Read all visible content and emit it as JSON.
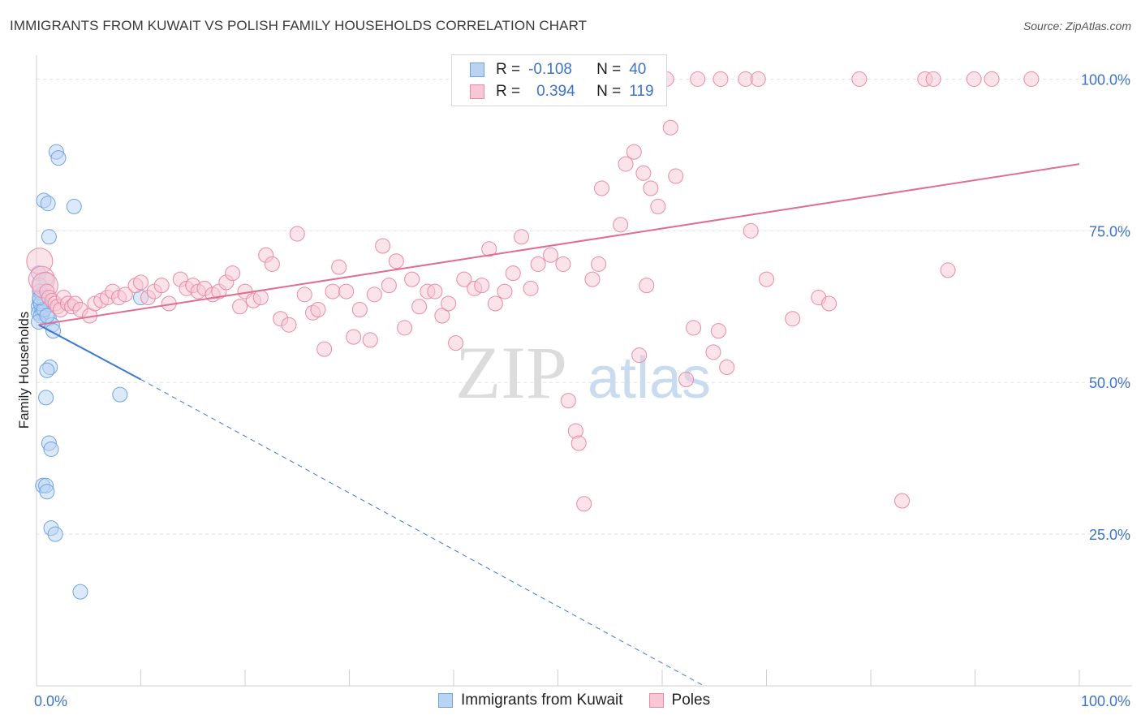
{
  "title": "IMMIGRANTS FROM KUWAIT VS POLISH FAMILY HOUSEHOLDS CORRELATION CHART",
  "source": "Source: ZipAtlas.com",
  "watermark": {
    "zip": "ZIP",
    "atlas": "atlas"
  },
  "legend": {
    "rows": [
      {
        "r_label": "R =",
        "r_value": "-0.108",
        "n_label": "N =",
        "n_value": "40"
      },
      {
        "r_label": "R =",
        "r_value": "0.394",
        "n_label": "N =",
        "n_value": "119"
      }
    ]
  },
  "bottom_legend": {
    "series1": "Immigrants from Kuwait",
    "series2": "Poles"
  },
  "colors": {
    "blue": "#6fa3e0",
    "blue_fill": "#b9d3f3",
    "blue_line": "#3b78d4",
    "pink": "#e88aa8",
    "pink_fill": "#f7c7d6",
    "pink_line": "#e06d93",
    "tick_text": "#3d74c7"
  },
  "chart_data": {
    "type": "scatter",
    "title": "IMMIGRANTS FROM KUWAIT VS POLISH FAMILY HOUSEHOLDS CORRELATION CHART",
    "xlabel": "",
    "ylabel": "Family Households",
    "xlim": [
      0,
      100
    ],
    "ylim": [
      0,
      103
    ],
    "x_tick_labels": [
      {
        "value": 0,
        "label": "0.0%"
      },
      {
        "value": 100,
        "label": "100.0%"
      }
    ],
    "y_tick_labels": [
      {
        "value": 25,
        "label": "25.0%"
      },
      {
        "value": 50,
        "label": "50.0%"
      },
      {
        "value": 75,
        "label": "75.0%"
      },
      {
        "value": 100,
        "label": "100.0%"
      }
    ],
    "grid": true,
    "series": [
      {
        "name": "Immigrants from Kuwait",
        "color": "#6fa3e0",
        "r": -0.108,
        "n": 40,
        "trend": {
          "x0": 0.2,
          "y0": 59.5,
          "x1": 10,
          "y1": 50.5,
          "dash_x1": 64,
          "dash_y1": 0
        },
        "points": [
          [
            1.9,
            88
          ],
          [
            2.1,
            87
          ],
          [
            0.7,
            80
          ],
          [
            1.1,
            79.5
          ],
          [
            3.6,
            79
          ],
          [
            1.2,
            74
          ],
          [
            0.2,
            68
          ],
          [
            0.9,
            67
          ],
          [
            0.3,
            66
          ],
          [
            0.3,
            65
          ],
          [
            0.5,
            64.5
          ],
          [
            0.6,
            64
          ],
          [
            0.3,
            63.5
          ],
          [
            0.8,
            63
          ],
          [
            0.2,
            62.5
          ],
          [
            0.5,
            62
          ],
          [
            0.2,
            61.5
          ],
          [
            0.6,
            61.5
          ],
          [
            0.4,
            61
          ],
          [
            1.2,
            60.5
          ],
          [
            0.2,
            60
          ],
          [
            1.5,
            59.5
          ],
          [
            1.6,
            58.5
          ],
          [
            10,
            64
          ],
          [
            1.3,
            52.5
          ],
          [
            1.0,
            52
          ],
          [
            0.9,
            47.5
          ],
          [
            8.0,
            48
          ],
          [
            1.2,
            40
          ],
          [
            1.4,
            39
          ],
          [
            0.6,
            33
          ],
          [
            0.9,
            33
          ],
          [
            1.0,
            32
          ],
          [
            1.4,
            26
          ],
          [
            1.8,
            25
          ],
          [
            4.2,
            15.5
          ],
          [
            0.4,
            63
          ],
          [
            0.7,
            62
          ],
          [
            1.0,
            61
          ],
          [
            0.3,
            64
          ]
        ]
      },
      {
        "name": "Poles",
        "color": "#e88aa8",
        "r": 0.394,
        "n": 119,
        "trend": {
          "x0": 0.2,
          "y0": 59.5,
          "x1": 100,
          "y1": 86
        },
        "points": [
          [
            0.3,
            70
          ],
          [
            0.5,
            67
          ],
          [
            0.8,
            66
          ],
          [
            1.0,
            65
          ],
          [
            1.2,
            64
          ],
          [
            1.5,
            63.5
          ],
          [
            1.8,
            63
          ],
          [
            2.0,
            62.5
          ],
          [
            2.3,
            62
          ],
          [
            2.6,
            64
          ],
          [
            3.0,
            63
          ],
          [
            3.4,
            62.5
          ],
          [
            3.7,
            63
          ],
          [
            4.2,
            62
          ],
          [
            5.1,
            61
          ],
          [
            5.6,
            63
          ],
          [
            6.2,
            63.5
          ],
          [
            6.8,
            64
          ],
          [
            7.3,
            65
          ],
          [
            7.9,
            64
          ],
          [
            8.5,
            64.5
          ],
          [
            9.5,
            66
          ],
          [
            10.0,
            66.5
          ],
          [
            10.7,
            64
          ],
          [
            11.3,
            65
          ],
          [
            12.0,
            66
          ],
          [
            12.7,
            63
          ],
          [
            13.8,
            67
          ],
          [
            14.4,
            65.5
          ],
          [
            15.0,
            66
          ],
          [
            15.5,
            65
          ],
          [
            16.1,
            65.5
          ],
          [
            16.9,
            64.5
          ],
          [
            17.5,
            65
          ],
          [
            18.2,
            66.5
          ],
          [
            18.8,
            68
          ],
          [
            19.5,
            62.5
          ],
          [
            20.0,
            65
          ],
          [
            20.8,
            63.5
          ],
          [
            21.5,
            64
          ],
          [
            22.0,
            71
          ],
          [
            22.6,
            69.5
          ],
          [
            23.4,
            60.5
          ],
          [
            24.2,
            59.5
          ],
          [
            25.0,
            74.5
          ],
          [
            25.7,
            64.5
          ],
          [
            26.5,
            61.5
          ],
          [
            27.0,
            62
          ],
          [
            27.6,
            55.5
          ],
          [
            28.4,
            65
          ],
          [
            29.0,
            69
          ],
          [
            29.7,
            65
          ],
          [
            30.4,
            57.5
          ],
          [
            31.0,
            62
          ],
          [
            32.0,
            57
          ],
          [
            32.4,
            64.5
          ],
          [
            33.2,
            72.5
          ],
          [
            33.8,
            66
          ],
          [
            34.5,
            70
          ],
          [
            35.3,
            59
          ],
          [
            36.0,
            67
          ],
          [
            36.7,
            62.5
          ],
          [
            37.5,
            65
          ],
          [
            38.2,
            65
          ],
          [
            38.9,
            61
          ],
          [
            39.5,
            63
          ],
          [
            40.2,
            56.5
          ],
          [
            41.0,
            67
          ],
          [
            42.0,
            65.5
          ],
          [
            42.7,
            66
          ],
          [
            43.4,
            72
          ],
          [
            44.0,
            63
          ],
          [
            44.9,
            65
          ],
          [
            45.7,
            68
          ],
          [
            46.5,
            74
          ],
          [
            47.4,
            65.5
          ],
          [
            48.1,
            69.5
          ],
          [
            49.3,
            71
          ],
          [
            50.5,
            69.5
          ],
          [
            51.0,
            47
          ],
          [
            51.7,
            42
          ],
          [
            52.0,
            40
          ],
          [
            52.5,
            30
          ],
          [
            53.3,
            67
          ],
          [
            53.9,
            69.5
          ],
          [
            54.2,
            82
          ],
          [
            56.0,
            76
          ],
          [
            56.5,
            86
          ],
          [
            57.3,
            88
          ],
          [
            57.8,
            54.5
          ],
          [
            58.2,
            84.5
          ],
          [
            58.5,
            66
          ],
          [
            58.9,
            82
          ],
          [
            59.6,
            79
          ],
          [
            60.4,
            100
          ],
          [
            60.8,
            92
          ],
          [
            61.3,
            84
          ],
          [
            62.3,
            50.5
          ],
          [
            63.0,
            59
          ],
          [
            63.4,
            100
          ],
          [
            64.9,
            55
          ],
          [
            65.4,
            58.5
          ],
          [
            66.2,
            52.5
          ],
          [
            68.5,
            75
          ],
          [
            70.0,
            67
          ],
          [
            72.5,
            60.5
          ],
          [
            75.0,
            64
          ],
          [
            76.0,
            63
          ],
          [
            78.9,
            100
          ],
          [
            83.0,
            30.5
          ],
          [
            85.2,
            100
          ],
          [
            86.0,
            100
          ],
          [
            87.4,
            68.5
          ],
          [
            89.9,
            100
          ],
          [
            91.6,
            100
          ],
          [
            95.4,
            100
          ],
          [
            68.0,
            100
          ],
          [
            69.2,
            100
          ],
          [
            65.6,
            100
          ]
        ]
      }
    ]
  }
}
